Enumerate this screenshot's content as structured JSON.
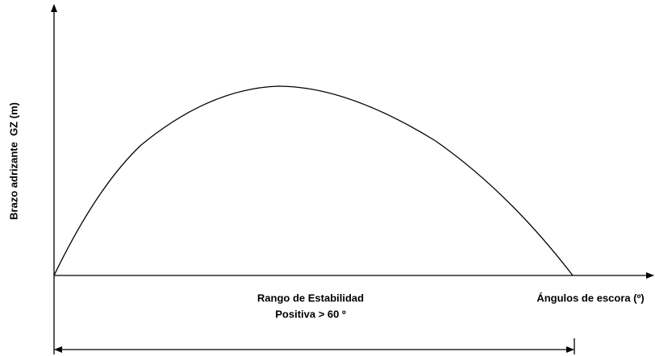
{
  "axes": {
    "y_label": "Brazo adrizante  GZ (m)",
    "x_label": "Ángulos de escora (º)"
  },
  "range": {
    "line1": "Rango de Estabilidad",
    "line2": "Positiva > 60 º"
  }
}
